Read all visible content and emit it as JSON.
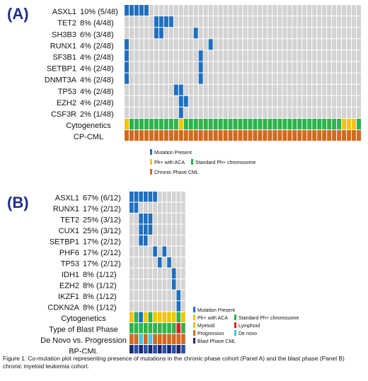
{
  "colors": {
    "mutation": "#1f6fbf",
    "empty": "#d3d3d3",
    "ph_aca": "#f2c40f",
    "standard_ph": "#2db34a",
    "cp_cml": "#d2691e",
    "myeloid": "#f2c40f",
    "lymphoid": "#e01e25",
    "progression": "#d2691e",
    "de_novo": "#3ec7e0",
    "bp_cml": "#1c2a6b"
  },
  "panel_a": {
    "letter": "(A)",
    "n_samples": 48,
    "genes": [
      {
        "gene": "ASXL1",
        "freq": "10% (5/48)",
        "mutated": [
          0,
          1,
          2,
          3,
          4
        ]
      },
      {
        "gene": "TET2",
        "freq": "8% (4/48)",
        "mutated": [
          6,
          7,
          8,
          9
        ]
      },
      {
        "gene": "SH3B3",
        "freq": "6% (3/48)",
        "mutated": [
          6,
          7,
          14
        ]
      },
      {
        "gene": "RUNX1",
        "freq": "4% (2/48)",
        "mutated": [
          0,
          17
        ]
      },
      {
        "gene": "SF3B1",
        "freq": "4% (2/48)",
        "mutated": [
          0,
          15
        ]
      },
      {
        "gene": "SETBP1",
        "freq": "4% (2/48)",
        "mutated": [
          0,
          15
        ]
      },
      {
        "gene": "DNMT3A",
        "freq": "4% (2/48)",
        "mutated": [
          0,
          15
        ]
      },
      {
        "gene": "TP53",
        "freq": "4% (2/48)",
        "mutated": [
          10,
          11
        ]
      },
      {
        "gene": "EZH2",
        "freq": "4% (2/48)",
        "mutated": [
          11,
          12
        ]
      },
      {
        "gene": "CSF3R",
        "freq": "2% (1/48)",
        "mutated": [
          11
        ]
      }
    ],
    "tracks": [
      {
        "label": "Cytogenetics",
        "codes": "YGGGGGGGGGGYGGGGGGGGGGGGGGGGGGGGGGGGGGGGGGGGYYYG"
      },
      {
        "label": "CP-CML",
        "codes": "OOOOOOOOOOOOOOOOOOOOOOOOOOOOOOOOOOOOOOOOOOOOOOOO"
      }
    ],
    "legend": [
      {
        "color_key": "mutation",
        "text": "Mutation Present"
      },
      {
        "color_key": "ph_aca",
        "text": "Ph+ with ACA"
      },
      {
        "color_key": "standard_ph",
        "text": "Standard Ph+ chromosome"
      },
      {
        "color_key": "cp_cml",
        "text": "Chronic Phase CML"
      }
    ]
  },
  "panel_b": {
    "letter": "(B)",
    "n_samples": 12,
    "genes": [
      {
        "gene": "ASXL1",
        "freq": "67% (6/12)",
        "mutated": [
          0,
          1,
          2,
          3,
          4,
          5
        ]
      },
      {
        "gene": "RUNX1",
        "freq": "17% (2/12)",
        "mutated": [
          0,
          1
        ]
      },
      {
        "gene": "TET2",
        "freq": "25% (3/12)",
        "mutated": [
          2,
          3,
          4
        ]
      },
      {
        "gene": "CUX1",
        "freq": "25% (3/12)",
        "mutated": [
          2,
          3,
          4
        ]
      },
      {
        "gene": "SETBP1",
        "freq": "17% (2/12)",
        "mutated": [
          2,
          3
        ]
      },
      {
        "gene": "PHF6",
        "freq": "17% (2/12)",
        "mutated": [
          5,
          7
        ]
      },
      {
        "gene": "TP53",
        "freq": "17% (2/12)",
        "mutated": [
          6,
          8
        ]
      },
      {
        "gene": "IDH1",
        "freq": "8% (1/12)",
        "mutated": [
          9
        ]
      },
      {
        "gene": "EZH2",
        "freq": "8% (1/12)",
        "mutated": [
          9
        ]
      },
      {
        "gene": "IKZF1",
        "freq": "8% (1/12)",
        "mutated": [
          10
        ]
      },
      {
        "gene": "CDKN2A",
        "freq": "8% (1/12)",
        "mutated": [
          10
        ]
      }
    ],
    "tracks": [
      {
        "label": "Cytogenetics",
        "codes": "YGBYGYYYYYGY"
      },
      {
        "label": "Type of Blast Phase",
        "codes": "GGGGGGGGGGRG"
      },
      {
        "label": "De Novo vs. Progression",
        "codes": "OOCOCOOOOOOO"
      },
      {
        "label": "BP-CML",
        "codes": "DKDKDKDKDKDK"
      }
    ],
    "legend": [
      {
        "color_key": "mutation",
        "text": "Mutation Present"
      },
      {
        "color_key": "ph_aca",
        "text": "Ph+ with ACA"
      },
      {
        "color_key": "standard_ph",
        "text": "Standard Ph+ chromosome"
      },
      {
        "color_key": "myeloid",
        "text": "Myeloid"
      },
      {
        "color_key": "lymphoid",
        "text": "Lymphoid"
      },
      {
        "color_key": "progression",
        "text": "Progression"
      },
      {
        "color_key": "de_novo",
        "text": "De novo"
      },
      {
        "color_key": "bp_cml",
        "text": "Blast Phase CML"
      }
    ]
  },
  "caption": "Figure 1:  Co-mutation plot representing presence of mutations in the    chronic phase cohort (Panel A) and the  blast phase (Panel B) chronic myeloid leukemia cohort."
}
